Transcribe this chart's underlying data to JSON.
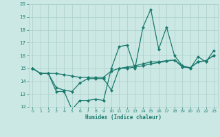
{
  "xlabel": "Humidex (Indice chaleur)",
  "x_values": [
    0,
    1,
    2,
    3,
    4,
    5,
    6,
    7,
    8,
    9,
    10,
    11,
    12,
    13,
    14,
    15,
    16,
    17,
    18,
    19,
    20,
    21,
    22,
    23
  ],
  "line1": [
    15.0,
    14.6,
    14.6,
    13.2,
    13.2,
    11.8,
    12.5,
    12.5,
    12.6,
    12.5,
    15.0,
    16.7,
    16.8,
    15.0,
    18.2,
    19.6,
    16.5,
    18.2,
    16.0,
    15.2,
    15.0,
    15.9,
    15.5,
    16.4
  ],
  "line2": [
    15.0,
    14.6,
    14.6,
    14.6,
    14.5,
    14.4,
    14.3,
    14.3,
    14.3,
    14.3,
    14.8,
    15.0,
    15.1,
    15.2,
    15.35,
    15.5,
    15.5,
    15.6,
    15.65,
    15.1,
    15.05,
    15.5,
    15.6,
    16.0
  ],
  "line3": [
    15.0,
    14.6,
    14.6,
    13.5,
    13.3,
    13.2,
    13.85,
    14.2,
    14.2,
    14.2,
    13.3,
    15.0,
    15.0,
    15.1,
    15.2,
    15.35,
    15.45,
    15.55,
    15.65,
    15.2,
    15.05,
    15.5,
    15.6,
    16.0
  ],
  "line_color": "#1a7a6e",
  "bg_color": "#cce8e4",
  "grid_color": "#aacfcb",
  "text_color": "#1a7a6e",
  "ylim": [
    12,
    20
  ],
  "xlim": [
    -0.5,
    23.5
  ]
}
